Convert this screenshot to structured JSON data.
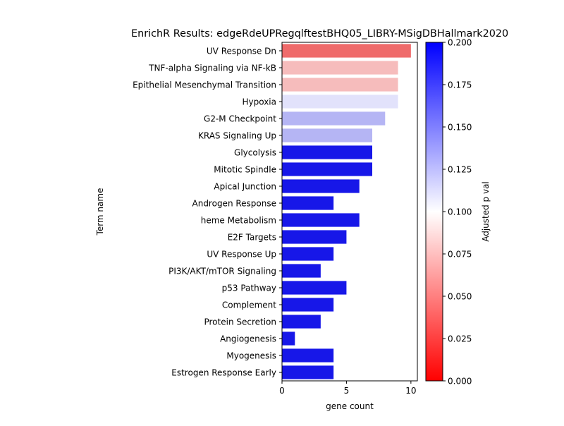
{
  "chart_data": {
    "type": "bar",
    "orientation": "horizontal",
    "title": "EnrichR Results: edgeRdeUPRegqlftestBHQ05_LIBRY-MSigDBHallmark2020",
    "xlabel": "gene count",
    "ylabel": "Term name",
    "xlim": [
      0,
      10.5
    ],
    "xticks": [
      0,
      5,
      10
    ],
    "categories": [
      "UV Response Dn",
      "TNF-alpha Signaling via NF-kB",
      "Epithelial Mesenchymal Transition",
      "Hypoxia",
      "G2-M Checkpoint",
      "KRAS Signaling Up",
      "Glycolysis",
      "Mitotic Spindle",
      "Apical Junction",
      "Androgen Response",
      "heme Metabolism",
      "E2F Targets",
      "UV Response Up",
      "PI3K/AKT/mTOR  Signaling",
      "p53 Pathway",
      "Complement",
      "Protein Secretion",
      "Angiogenesis",
      "Myogenesis",
      "Estrogen Response Early"
    ],
    "values": [
      10,
      9,
      9,
      9,
      8,
      7,
      7,
      7,
      6,
      4,
      6,
      5,
      4,
      3,
      5,
      4,
      3,
      1,
      4,
      4
    ],
    "bar_colors": [
      "#ef6b6b",
      "#f6bcbc",
      "#f6bcbc",
      "#e2e2fb",
      "#b5b5f4",
      "#b5b5f4",
      "#1717e8",
      "#1717e8",
      "#1717e8",
      "#1717e8",
      "#1717e8",
      "#1717e8",
      "#1717e8",
      "#1717e8",
      "#1717e8",
      "#1717e8",
      "#1717e8",
      "#1717e8",
      "#1717e8",
      "#1717e8"
    ],
    "colorbar": {
      "label": "Adjusted p val",
      "range": [
        0,
        0.2
      ],
      "ticks": [
        "0.000",
        "0.025",
        "0.050",
        "0.075",
        "0.100",
        "0.125",
        "0.150",
        "0.175",
        "0.200"
      ],
      "colormap": "bwr_r",
      "colors": [
        "#ff0000",
        "#ffffff",
        "#0000ff"
      ]
    }
  }
}
